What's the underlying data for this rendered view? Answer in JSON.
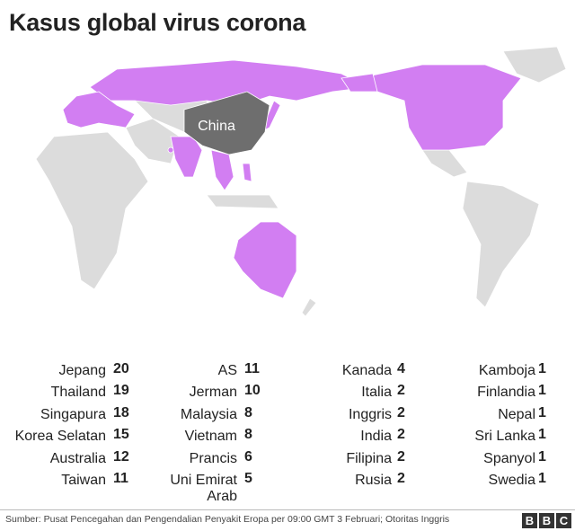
{
  "title": "Kasus global virus corona",
  "map": {
    "label": "China"
  },
  "columns": [
    [
      {
        "country": "Jepang",
        "cases": 20
      },
      {
        "country": "Thailand",
        "cases": 19
      },
      {
        "country": "Singapura",
        "cases": 18
      },
      {
        "country": "Korea Selatan",
        "cases": 15
      },
      {
        "country": "Australia",
        "cases": 12
      },
      {
        "country": "Taiwan",
        "cases": 11
      }
    ],
    [
      {
        "country": "AS",
        "cases": 11
      },
      {
        "country": "Jerman",
        "cases": 10
      },
      {
        "country": "Malaysia",
        "cases": 8
      },
      {
        "country": "Vietnam",
        "cases": 8
      },
      {
        "country": "Prancis",
        "cases": 6
      },
      {
        "country": "Uni Emirat Arab",
        "cases": 5
      }
    ],
    [
      {
        "country": "Kanada",
        "cases": 4
      },
      {
        "country": "Italia",
        "cases": 2
      },
      {
        "country": "Inggris",
        "cases": 2
      },
      {
        "country": "India",
        "cases": 2
      },
      {
        "country": "Filipina",
        "cases": 2
      },
      {
        "country": "Rusia",
        "cases": 2
      }
    ],
    [
      {
        "country": "Kamboja",
        "cases": 1
      },
      {
        "country": "Finlandia",
        "cases": 1
      },
      {
        "country": "Nepal",
        "cases": 1
      },
      {
        "country": "Sri Lanka",
        "cases": 1
      },
      {
        "country": "Spanyol",
        "cases": 1
      },
      {
        "country": "Swedia",
        "cases": 1
      }
    ]
  ],
  "footer": {
    "source": "Sumber: Pusat Pencegahan dan Pengendalian Penyakit Eropa per 09:00 GMT 3 Februari; Otoritas Inggris",
    "logo": [
      "B",
      "B",
      "C"
    ]
  }
}
